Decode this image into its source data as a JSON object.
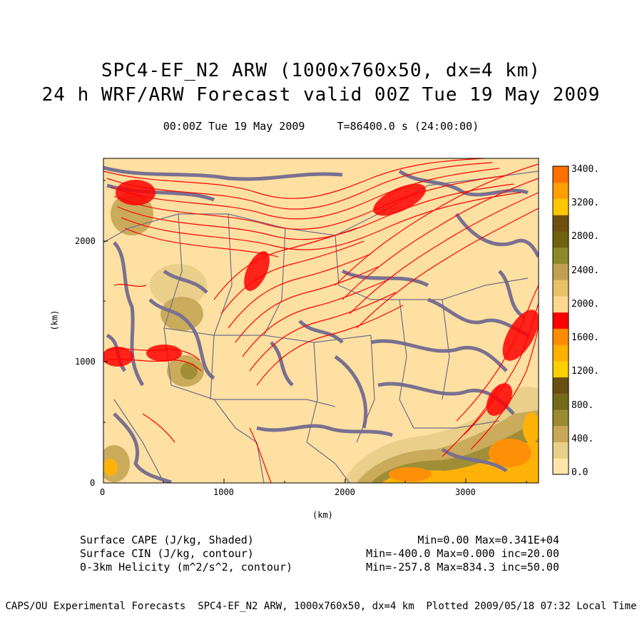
{
  "title": {
    "line1": "SPC4-EF_N2 ARW (1000x760x50, dx=4 km)",
    "line2": "24 h WRF/ARW Forecast valid 00Z Tue 19 May 2009",
    "subtitle": "00:00Z Tue 19 May 2009     T=86400.0 s (24:00:00)"
  },
  "axes": {
    "xlabel": "(km)",
    "ylabel": "(km)",
    "xticks": [
      "0",
      "1000",
      "2000",
      "3000"
    ],
    "yticks": [
      "0",
      "1000",
      "2000"
    ]
  },
  "colorbar": {
    "labels": [
      "3400.",
      "3200.",
      "2800.",
      "2400.",
      "2000.",
      "1600.",
      "1200.",
      "800.",
      "400.",
      "0.0"
    ],
    "colors": [
      "#ffe4a8",
      "#e8cf88",
      "#c8a858",
      "#9a8a30",
      "#756a1a",
      "#6a5010",
      "#ffd000",
      "#ffb000",
      "#ff8c00",
      "#ff0000",
      "#ffd890",
      "#e8c068",
      "#c0a050",
      "#8c8a28",
      "#70620e",
      "#705010",
      "#ffc800",
      "#ffa000",
      "#ff7000"
    ]
  },
  "fields": {
    "cape": "Surface CAPE (J/kg, Shaded)",
    "cin": "Surface CIN (J/kg, contour)",
    "helicity": "0-3km Helicity (m^2/s^2, contour)",
    "cape_stats": "Min=0.00 Max=0.341E+04",
    "cin_stats": "Min=-400.0 Max=0.000 inc=20.00",
    "helicity_stats": "Min=-257.8 Max=834.3 inc=50.00"
  },
  "footer": "CAPS/OU Experimental Forecasts  SPC4-EF_N2 ARW, 1000x760x50, dx=4 km  Plotted 2009/05/18 07:32 Local Time",
  "map_colors": {
    "background": "#fde0a2",
    "cin_contour": "#7a7090",
    "helicity_contour": "#ff0000",
    "borders": "#6e6e8a"
  }
}
